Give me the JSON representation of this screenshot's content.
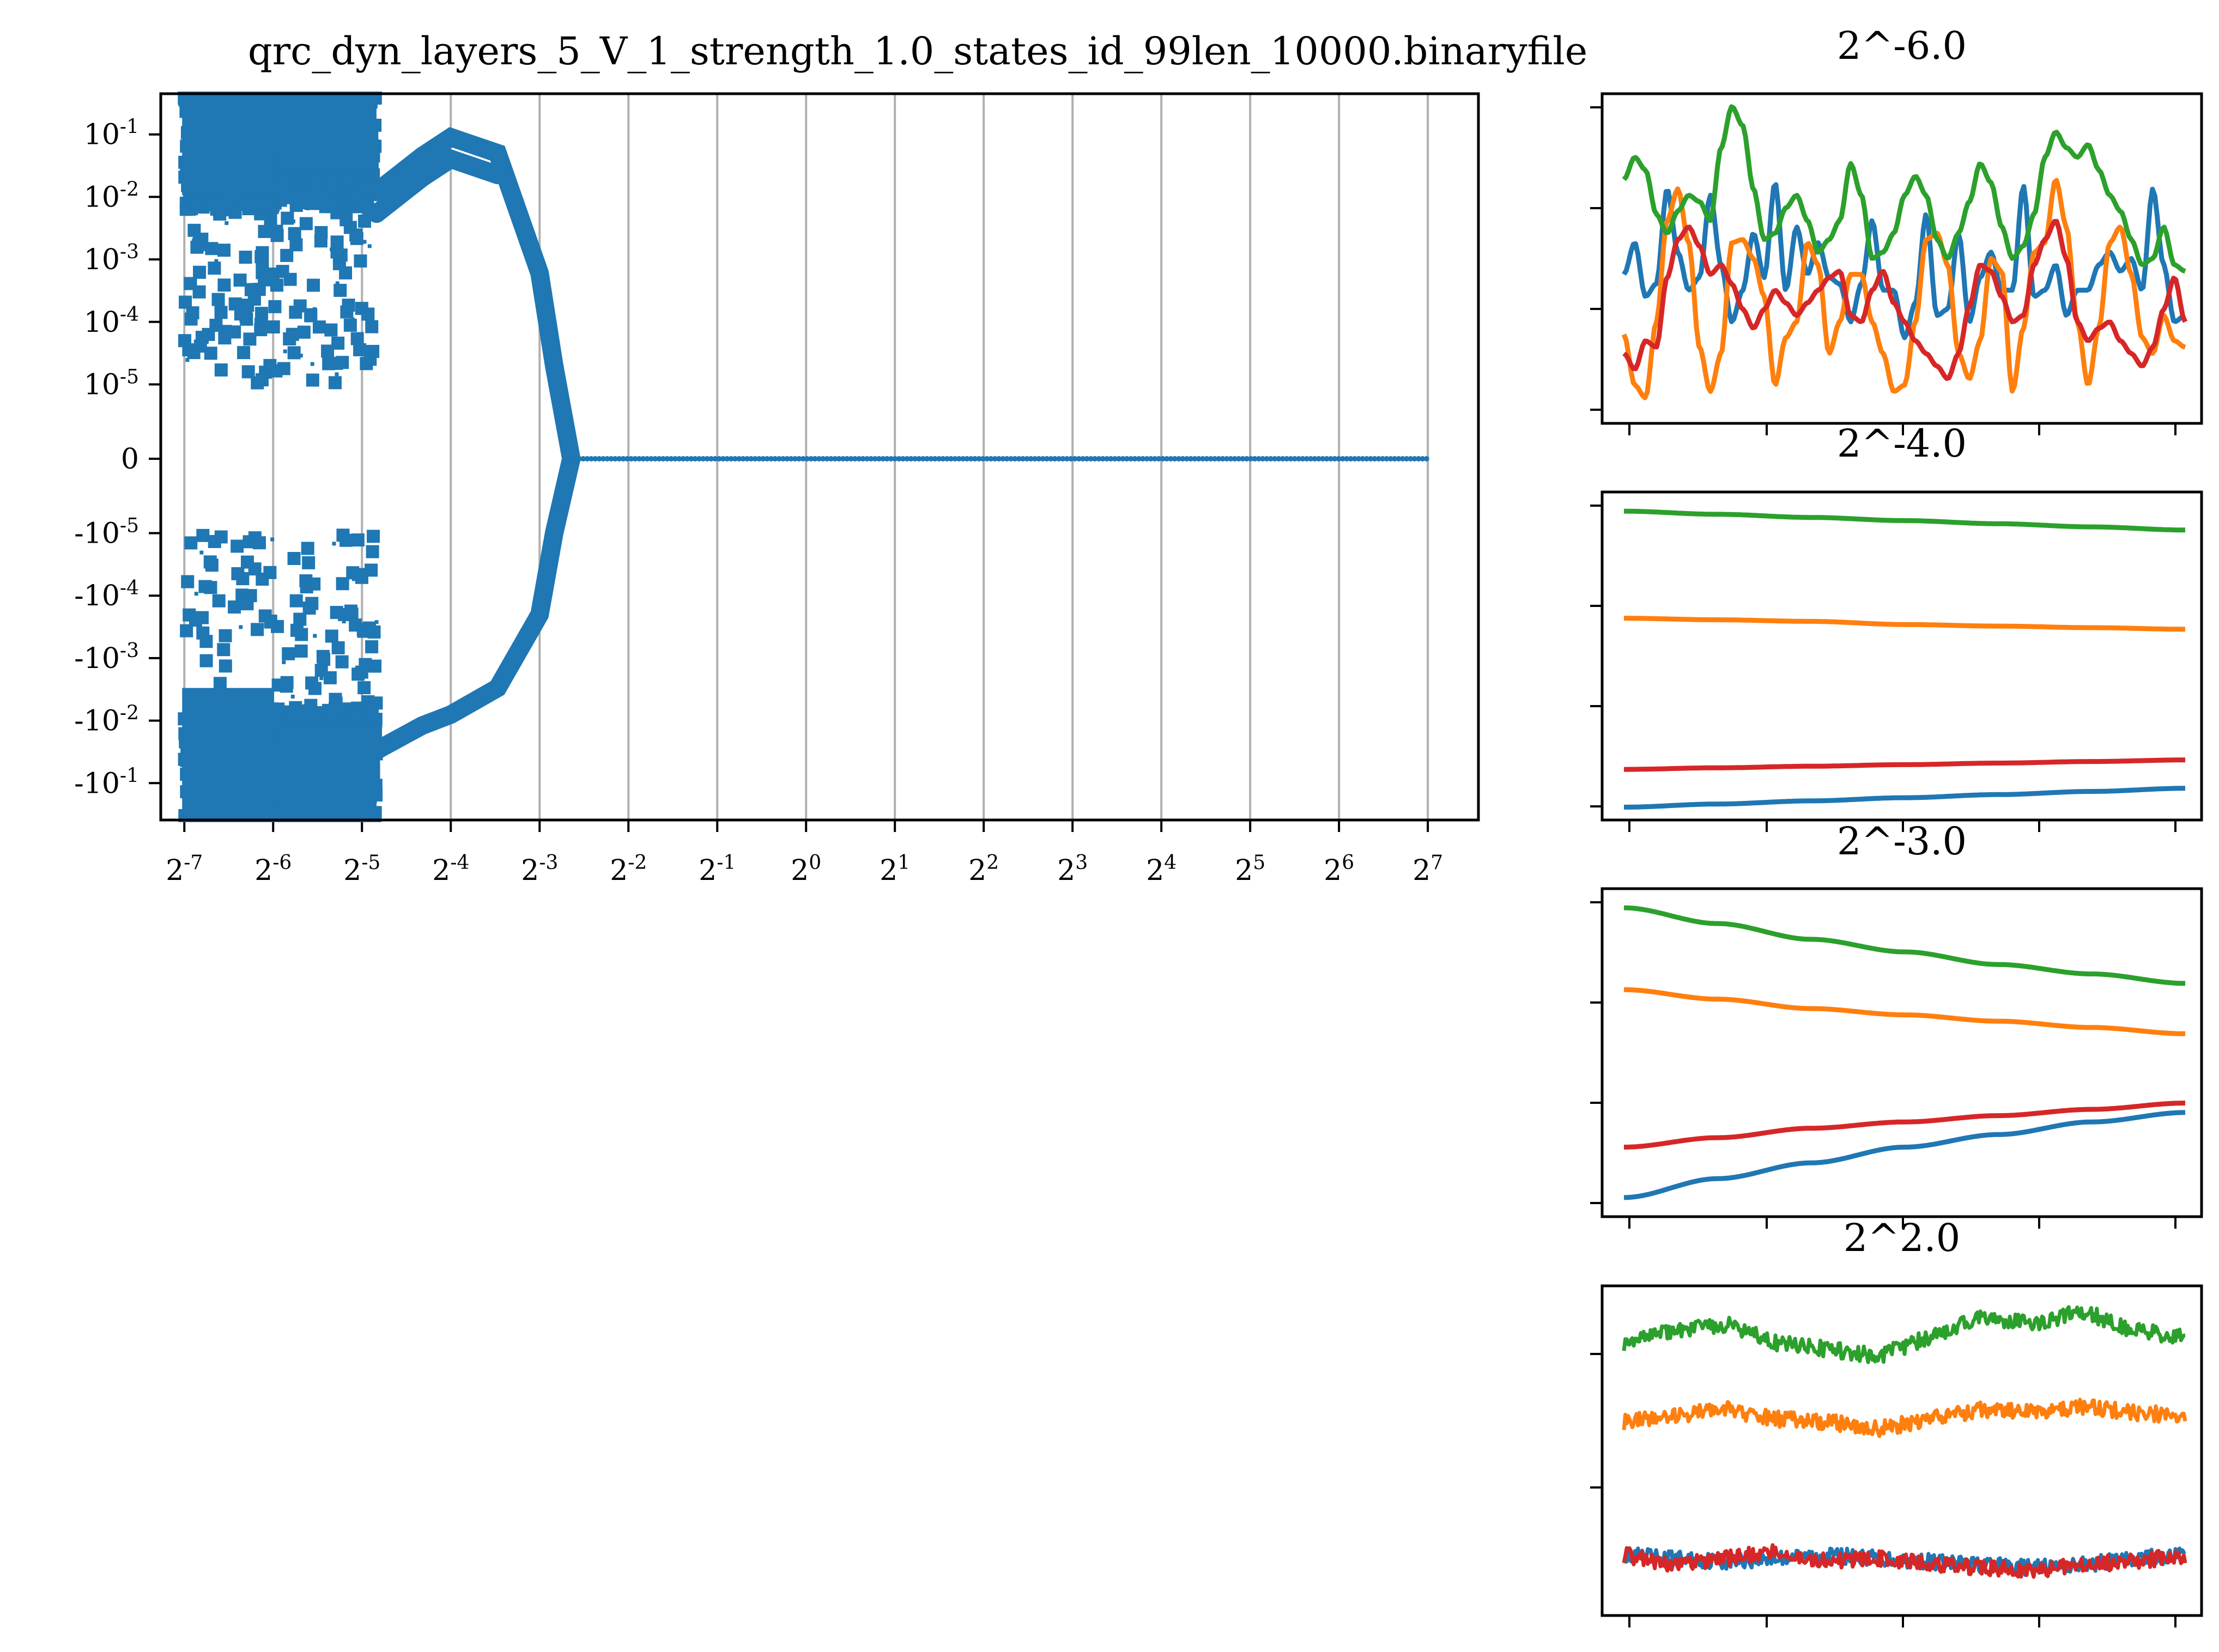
{
  "chart_data": [
    {
      "type": "scatter",
      "title": "qrc_dyn_layers_5_V_1_strength_1.0_states_id_99len_10000.binaryfile",
      "xlabel": "",
      "ylabel": "",
      "x_scale": "log2",
      "y_scale": "symlog",
      "grid": "x-only",
      "color": "#1f77b4",
      "xlim": [
        0.0065,
        190
      ],
      "xticks": [
        0.0078125,
        0.015625,
        0.03125,
        0.0625,
        0.125,
        0.25,
        0.5,
        1,
        2,
        4,
        8,
        16,
        32,
        64,
        128
      ],
      "xtick_labels": [
        {
          "base": "2",
          "exp": "-7"
        },
        {
          "base": "2",
          "exp": "-6"
        },
        {
          "base": "2",
          "exp": "-5"
        },
        {
          "base": "2",
          "exp": "-4"
        },
        {
          "base": "2",
          "exp": "-3"
        },
        {
          "base": "2",
          "exp": "-2"
        },
        {
          "base": "2",
          "exp": "-1"
        },
        {
          "base": "2",
          "exp": "0"
        },
        {
          "base": "2",
          "exp": "1"
        },
        {
          "base": "2",
          "exp": "2"
        },
        {
          "base": "2",
          "exp": "3"
        },
        {
          "base": "2",
          "exp": "4"
        },
        {
          "base": "2",
          "exp": "5"
        },
        {
          "base": "2",
          "exp": "6"
        },
        {
          "base": "2",
          "exp": "7"
        }
      ],
      "ytick_labels": [
        {
          "base": "10",
          "exp": "-1"
        },
        {
          "base": "10",
          "exp": "-2"
        },
        {
          "base": "10",
          "exp": "-3"
        },
        {
          "base": "10",
          "exp": "-4"
        },
        {
          "base": "10",
          "exp": "-5"
        },
        {
          "base": "0",
          "exp": ""
        },
        {
          "base": "-10",
          "exp": "-5"
        },
        {
          "base": "-10",
          "exp": "-4"
        },
        {
          "base": "-10",
          "exp": "-3"
        },
        {
          "base": "-10",
          "exp": "-2"
        },
        {
          "base": "-10",
          "exp": "-1"
        }
      ],
      "features": {
        "chaotic_region_x": [
          0.0078125,
          0.035
        ],
        "bifurcation_upper_branch": [
          [
            0.035,
            0.012
          ],
          [
            0.05,
            0.045
          ],
          [
            0.0625,
            0.09
          ],
          [
            0.09,
            0.05
          ],
          [
            0.125,
            0.0006
          ],
          [
            0.14,
            2e-05
          ],
          [
            0.16,
            0.0
          ]
        ],
        "bifurcation_lower_branch": [
          [
            0.035,
            -0.03
          ],
          [
            0.05,
            -0.012
          ],
          [
            0.0625,
            -0.008
          ],
          [
            0.09,
            -0.003
          ],
          [
            0.125,
            -0.0002
          ],
          [
            0.14,
            -1e-05
          ],
          [
            0.16,
            0.0
          ]
        ],
        "fixed_point": {
          "x_from": 0.16,
          "x_to": 128,
          "y": 0
        }
      }
    },
    {
      "type": "line",
      "title": "2^-6.0",
      "ytick_labels": [],
      "xtick_labels": [],
      "series": [
        {
          "color": "#1f77b4",
          "values": [
            0.45,
            0.55,
            0.38,
            0.42,
            0.72,
            0.52,
            0.4,
            0.44,
            0.7,
            0.48,
            0.3,
            0.4,
            0.58,
            0.44,
            0.74,
            0.4,
            0.6,
            0.45,
            0.55,
            0.44,
            0.42,
            0.3,
            0.42,
            0.62,
            0.4,
            0.4,
            0.25,
            0.36,
            0.64,
            0.32,
            0.34,
            0.58,
            0.3,
            0.44,
            0.52,
            0.4,
            0.4,
            0.73,
            0.38,
            0.4,
            0.48,
            0.32,
            0.4,
            0.4,
            0.48,
            0.52,
            0.46,
            0.5,
            0.4,
            0.72,
            0.48,
            0.3,
            0.32
          ]
        },
        {
          "color": "#ff7f0e",
          "values": [
            0.26,
            0.1,
            0.06,
            0.3,
            0.62,
            0.72,
            0.55,
            0.22,
            0.08,
            0.2,
            0.55,
            0.56,
            0.5,
            0.38,
            0.1,
            0.25,
            0.3,
            0.55,
            0.48,
            0.2,
            0.3,
            0.45,
            0.45,
            0.3,
            0.2,
            0.08,
            0.1,
            0.3,
            0.56,
            0.58,
            0.48,
            0.2,
            0.12,
            0.24,
            0.5,
            0.46,
            0.08,
            0.28,
            0.52,
            0.55,
            0.75,
            0.6,
            0.3,
            0.1,
            0.28,
            0.55,
            0.6,
            0.45,
            0.25,
            0.2,
            0.32,
            0.24,
            0.22
          ]
        },
        {
          "color": "#2ca02c",
          "values": [
            0.75,
            0.82,
            0.78,
            0.64,
            0.58,
            0.65,
            0.7,
            0.68,
            0.62,
            0.85,
            0.98,
            0.92,
            0.72,
            0.56,
            0.58,
            0.66,
            0.7,
            0.62,
            0.52,
            0.56,
            0.62,
            0.8,
            0.7,
            0.5,
            0.52,
            0.58,
            0.7,
            0.76,
            0.7,
            0.56,
            0.5,
            0.58,
            0.68,
            0.8,
            0.74,
            0.6,
            0.5,
            0.54,
            0.64,
            0.82,
            0.9,
            0.85,
            0.82,
            0.86,
            0.78,
            0.7,
            0.65,
            0.56,
            0.48,
            0.5,
            0.6,
            0.48,
            0.46
          ]
        },
        {
          "color": "#d62728",
          "values": [
            0.2,
            0.15,
            0.24,
            0.22,
            0.44,
            0.56,
            0.6,
            0.54,
            0.45,
            0.48,
            0.42,
            0.34,
            0.28,
            0.34,
            0.4,
            0.36,
            0.32,
            0.36,
            0.4,
            0.44,
            0.46,
            0.32,
            0.3,
            0.4,
            0.46,
            0.36,
            0.3,
            0.24,
            0.2,
            0.16,
            0.12,
            0.2,
            0.35,
            0.48,
            0.46,
            0.38,
            0.3,
            0.32,
            0.48,
            0.56,
            0.62,
            0.5,
            0.3,
            0.24,
            0.28,
            0.3,
            0.24,
            0.2,
            0.16,
            0.22,
            0.34,
            0.44,
            0.3
          ]
        }
      ]
    },
    {
      "type": "line",
      "title": "2^-4.0",
      "ytick_labels": [],
      "xtick_labels": [],
      "series": [
        {
          "color": "#1f77b4",
          "values": [
            0.02,
            0.03,
            0.04,
            0.05,
            0.06,
            0.07,
            0.08
          ]
        },
        {
          "color": "#ff7f0e",
          "values": [
            0.62,
            0.615,
            0.61,
            0.6,
            0.595,
            0.59,
            0.585
          ]
        },
        {
          "color": "#2ca02c",
          "values": [
            0.96,
            0.95,
            0.94,
            0.93,
            0.92,
            0.91,
            0.9
          ]
        },
        {
          "color": "#d62728",
          "values": [
            0.14,
            0.145,
            0.15,
            0.155,
            0.16,
            0.165,
            0.17
          ]
        }
      ]
    },
    {
      "type": "line",
      "title": "2^-3.0",
      "ytick_labels": [],
      "xtick_labels": [],
      "series": [
        {
          "color": "#1f77b4",
          "values": [
            0.04,
            0.1,
            0.15,
            0.2,
            0.24,
            0.28,
            0.31
          ]
        },
        {
          "color": "#ff7f0e",
          "values": [
            0.7,
            0.67,
            0.64,
            0.62,
            0.6,
            0.58,
            0.56
          ]
        },
        {
          "color": "#2ca02c",
          "values": [
            0.96,
            0.91,
            0.86,
            0.82,
            0.78,
            0.75,
            0.72
          ]
        },
        {
          "color": "#d62728",
          "values": [
            0.2,
            0.23,
            0.26,
            0.28,
            0.3,
            0.32,
            0.34
          ]
        }
      ]
    },
    {
      "type": "line",
      "title": "2^2.0",
      "ytick_labels": [],
      "xtick_labels": [],
      "series": [
        {
          "color": "#1f77b4",
          "values": [
            0.17,
            0.16,
            0.15,
            0.16,
            0.17,
            0.16,
            0.15,
            0.14,
            0.13,
            0.14,
            0.16,
            0.17
          ]
        },
        {
          "color": "#ff7f0e",
          "values": [
            0.59,
            0.61,
            0.63,
            0.6,
            0.59,
            0.57,
            0.6,
            0.63,
            0.62,
            0.64,
            0.62,
            0.61
          ]
        },
        {
          "color": "#2ca02c",
          "values": [
            0.84,
            0.88,
            0.9,
            0.84,
            0.82,
            0.8,
            0.86,
            0.92,
            0.9,
            0.94,
            0.88,
            0.86
          ]
        },
        {
          "color": "#d62728",
          "values": [
            0.17,
            0.14,
            0.16,
            0.18,
            0.15,
            0.16,
            0.14,
            0.13,
            0.12,
            0.14,
            0.15,
            0.17
          ]
        }
      ]
    }
  ]
}
